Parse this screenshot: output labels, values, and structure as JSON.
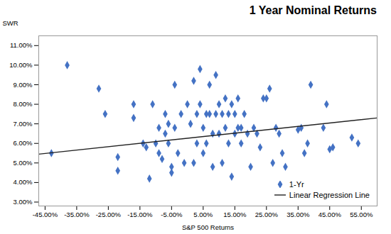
{
  "chart_data": {
    "type": "scatter",
    "title": "1 Year Nominal Returns",
    "xlabel": "S&P 500 Returns",
    "ylabel": "SWR",
    "xlim": [
      -0.47,
      0.6
    ],
    "ylim": [
      0.028,
      0.115
    ],
    "xticks": [
      {
        "value": -0.45,
        "label": "-45.00%"
      },
      {
        "value": -0.35,
        "label": "-35.00%"
      },
      {
        "value": -0.25,
        "label": "-25.00%"
      },
      {
        "value": -0.15,
        "label": "-15.00%"
      },
      {
        "value": -0.05,
        "label": "-5.00%"
      },
      {
        "value": 0.05,
        "label": "5.00%"
      },
      {
        "value": 0.15,
        "label": "15.00%"
      },
      {
        "value": 0.25,
        "label": "25.00%"
      },
      {
        "value": 0.35,
        "label": "35.00%"
      },
      {
        "value": 0.45,
        "label": "45.00%"
      },
      {
        "value": 0.55,
        "label": "55.00%"
      }
    ],
    "yticks": [
      {
        "value": 0.03,
        "label": "3.00%"
      },
      {
        "value": 0.04,
        "label": "4.00%"
      },
      {
        "value": 0.05,
        "label": "5.00%"
      },
      {
        "value": 0.06,
        "label": "6.00%"
      },
      {
        "value": 0.07,
        "label": "7.00%"
      },
      {
        "value": 0.08,
        "label": "8.00%"
      },
      {
        "value": 0.09,
        "label": "9.00%"
      },
      {
        "value": 0.1,
        "label": "10.00%"
      },
      {
        "value": 0.11,
        "label": "11.00%"
      }
    ],
    "grid": false,
    "legend": "lower right",
    "series": [
      {
        "name": "1-Yr",
        "type": "scatter",
        "color": "#4472C4",
        "marker": "diamond",
        "x": [
          -0.43,
          -0.38,
          -0.28,
          -0.26,
          -0.22,
          -0.22,
          -0.17,
          -0.17,
          -0.14,
          -0.13,
          -0.12,
          -0.11,
          -0.1,
          -0.09,
          -0.09,
          -0.08,
          -0.07,
          -0.07,
          -0.06,
          -0.06,
          -0.05,
          -0.05,
          -0.04,
          -0.04,
          -0.03,
          -0.02,
          -0.01,
          0.0,
          0.01,
          0.02,
          0.02,
          0.03,
          0.03,
          0.04,
          0.04,
          0.05,
          0.05,
          0.06,
          0.06,
          0.07,
          0.07,
          0.08,
          0.08,
          0.09,
          0.09,
          0.1,
          0.1,
          0.11,
          0.11,
          0.12,
          0.12,
          0.13,
          0.13,
          0.14,
          0.14,
          0.15,
          0.15,
          0.16,
          0.16,
          0.17,
          0.17,
          0.18,
          0.19,
          0.2,
          0.21,
          0.22,
          0.23,
          0.24,
          0.25,
          0.26,
          0.27,
          0.28,
          0.29,
          0.3,
          0.31,
          0.35,
          0.36,
          0.37,
          0.38,
          0.39,
          0.43,
          0.44,
          0.45,
          0.46,
          0.52,
          0.54
        ],
        "values": [
          0.055,
          0.1,
          0.088,
          0.075,
          0.053,
          0.046,
          0.08,
          0.073,
          0.06,
          0.058,
          0.042,
          0.08,
          0.06,
          0.068,
          0.055,
          0.052,
          0.075,
          0.065,
          0.07,
          0.06,
          0.048,
          0.045,
          0.09,
          0.068,
          0.055,
          0.075,
          0.05,
          0.08,
          0.07,
          0.092,
          0.05,
          0.075,
          0.06,
          0.098,
          0.08,
          0.068,
          0.055,
          0.075,
          0.06,
          0.09,
          0.075,
          0.065,
          0.048,
          0.095,
          0.075,
          0.08,
          0.065,
          0.075,
          0.05,
          0.083,
          0.068,
          0.075,
          0.06,
          0.08,
          0.043,
          0.075,
          0.065,
          0.083,
          0.068,
          0.068,
          0.06,
          0.075,
          0.065,
          0.048,
          0.068,
          0.065,
          0.058,
          0.083,
          0.083,
          0.088,
          0.05,
          0.068,
          0.065,
          0.055,
          0.048,
          0.067,
          0.068,
          0.055,
          0.06,
          0.09,
          0.068,
          0.08,
          0.057,
          0.058,
          0.063,
          0.06
        ]
      },
      {
        "name": "Linear Regression Line",
        "type": "line",
        "color": "#222222",
        "line_style": "solid",
        "x": [
          -0.47,
          0.6
        ],
        "values": [
          0.0545,
          0.073
        ]
      }
    ]
  }
}
